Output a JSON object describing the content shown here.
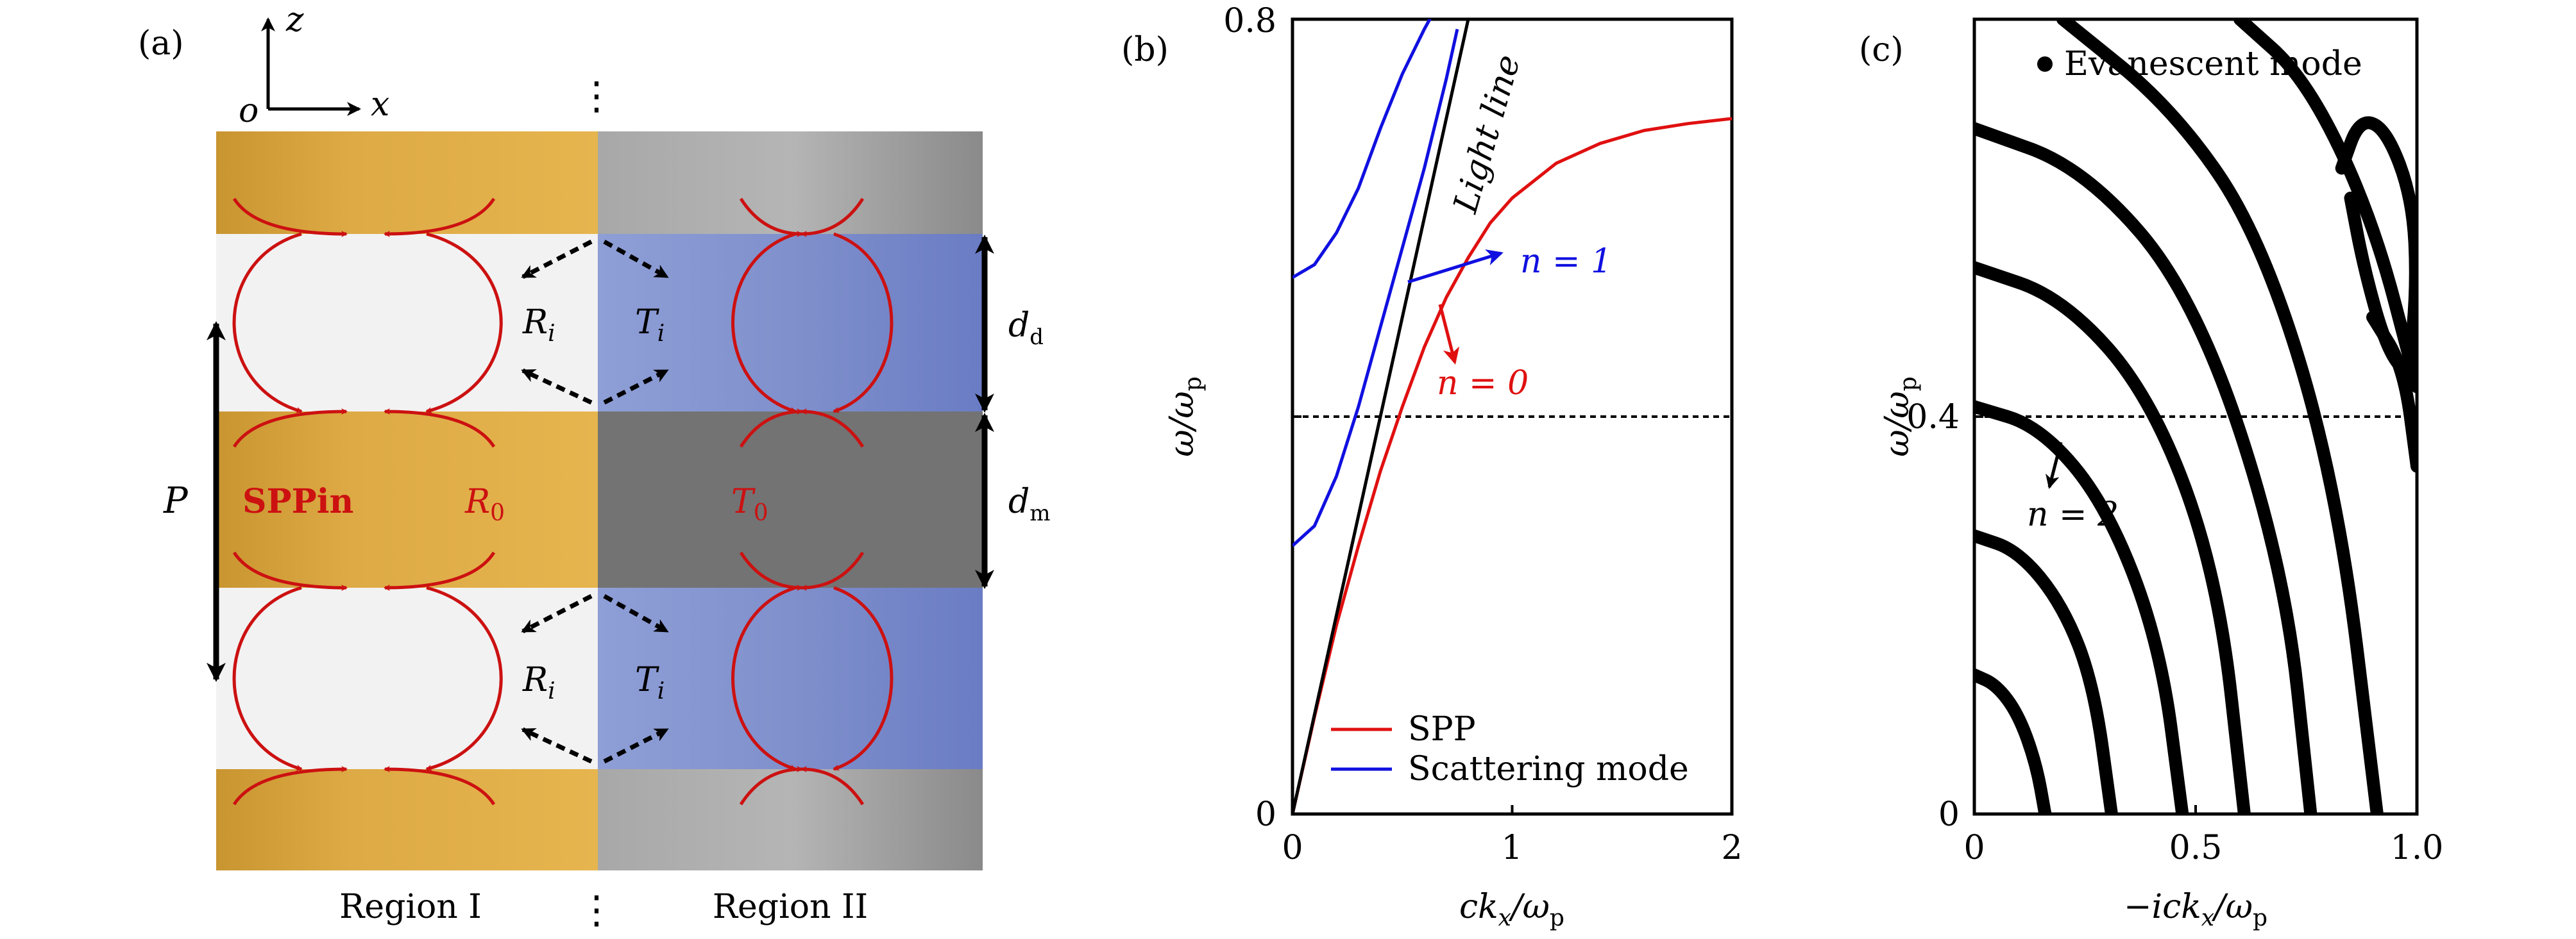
{
  "panel_a": {
    "label": "(a)",
    "axes": {
      "z": "z",
      "x": "x",
      "origin": "o"
    },
    "labels": {
      "spp_in": "SPPin",
      "r0": "R",
      "r0_sub": "0",
      "t0": "T",
      "t0_sub": "0",
      "ri": "R",
      "ri_sub": "i",
      "ti": "T",
      "ti_sub": "i",
      "period": "P",
      "dd": "d",
      "dd_sub": "d",
      "dm": "d",
      "dm_sub": "m",
      "region1": "Region I",
      "region2": "Region II",
      "colon": "⋮"
    },
    "colors": {
      "metal_left": "#D9A642",
      "metal_right": "#7A7A7A",
      "dielectric_left": "#F2F2F2",
      "dielectric_right": "#7E8FCC",
      "arrow": "#CC1111"
    }
  },
  "panel_b": {
    "label": "(b)",
    "xlabel": "ck",
    "xlabel_sub": "x",
    "xlabel_tail": "/ω",
    "xlabel_tail_sub": "p",
    "ylabel": "ω/ω",
    "ylabel_sub": "p",
    "xticks": [
      "0",
      "1",
      "2"
    ],
    "yticks": [
      "0",
      "0.8"
    ],
    "annotations": {
      "light_line": "Light line",
      "n1": "n = 1",
      "n0": "n = 0"
    },
    "legend": [
      {
        "name": "SPP",
        "color": "#E01010"
      },
      {
        "name": "Scattering mode",
        "color": "#1010E0"
      }
    ],
    "chart_data": {
      "type": "line",
      "xlim": [
        0,
        2
      ],
      "ylim": [
        0,
        0.8
      ],
      "hline": 0.4,
      "series": [
        {
          "name": "SPP",
          "color": "#E01010",
          "x": [
            0,
            0.1,
            0.2,
            0.3,
            0.4,
            0.5,
            0.6,
            0.7,
            0.8,
            0.9,
            1.0,
            1.2,
            1.4,
            1.6,
            1.8,
            2.0
          ],
          "y": [
            0,
            0.098,
            0.19,
            0.27,
            0.345,
            0.41,
            0.47,
            0.52,
            0.56,
            0.595,
            0.62,
            0.655,
            0.675,
            0.688,
            0.695,
            0.7
          ]
        },
        {
          "color": "#000000",
          "x": [
            0,
            0.8
          ],
          "y": [
            0,
            0.8
          ]
        },
        {
          "name": "Scattering mode",
          "color": "#1010E0",
          "x": [
            0,
            0.1,
            0.2,
            0.3,
            0.4,
            0.5,
            0.6,
            0.65
          ],
          "y": [
            0.54,
            0.553,
            0.585,
            0.63,
            0.69,
            0.745,
            0.79,
            0.81
          ]
        },
        {
          "name": "Scattering mode",
          "color": "#1010E0",
          "x": [
            0,
            0.1,
            0.2,
            0.3,
            0.4,
            0.5,
            0.6,
            0.7,
            0.75
          ],
          "y": [
            0.27,
            0.29,
            0.34,
            0.41,
            0.49,
            0.57,
            0.65,
            0.74,
            0.79
          ]
        }
      ]
    }
  },
  "panel_c": {
    "label": "(c)",
    "xlabel": "−ick",
    "xlabel_sub": "x",
    "xlabel_tail": "/ω",
    "xlabel_tail_sub": "p",
    "ylabel": "ω/ω",
    "ylabel_sub": "p",
    "xticks": [
      "0",
      "0.5",
      "1.0"
    ],
    "yticks": [
      "0",
      "0.4"
    ],
    "legend": [
      {
        "name": "Evanescent mode",
        "color": "#000000"
      }
    ],
    "annotations": {
      "n2": "n = 2"
    },
    "chart_data": {
      "type": "scatter",
      "xlim": [
        0,
        1.0
      ],
      "ylim": [
        0,
        0.8
      ],
      "hline": 0.4,
      "series": [
        {
          "name": "Evanescent mode",
          "arcs": [
            {
              "x": [
                0,
                0.05,
                0.1,
                0.14,
                0.16
              ],
              "y": [
                0.14,
                0.13,
                0.1,
                0.05,
                0
              ]
            },
            {
              "x": [
                0,
                0.1,
                0.2,
                0.27,
                0.31
              ],
              "y": [
                0.28,
                0.265,
                0.21,
                0.13,
                0
              ]
            },
            {
              "x": [
                0,
                0.15,
                0.3,
                0.42,
                0.47
              ],
              "y": [
                0.41,
                0.39,
                0.31,
                0.17,
                0
              ]
            },
            {
              "x": [
                0,
                0.2,
                0.4,
                0.55,
                0.61
              ],
              "y": [
                0.55,
                0.52,
                0.42,
                0.24,
                0
              ]
            },
            {
              "x": [
                0,
                0.25,
                0.5,
                0.7,
                0.76
              ],
              "y": [
                0.69,
                0.65,
                0.52,
                0.25,
                0
              ]
            },
            {
              "x": [
                0.2,
                0.45,
                0.65,
                0.82,
                0.91
              ],
              "y": [
                0.8,
                0.71,
                0.58,
                0.33,
                0
              ]
            },
            {
              "x": [
                0.6,
                0.75,
                0.9,
                1.0
              ],
              "y": [
                0.8,
                0.74,
                0.6,
                0.43
              ]
            },
            {
              "x": [
                0.83,
                0.87,
                0.93,
                0.99,
                1.0,
                0.98,
                0.93,
                0.88,
                0.85
              ],
              "y": [
                0.65,
                0.7,
                0.69,
                0.62,
                0.53,
                0.44,
                0.47,
                0.55,
                0.62
              ]
            },
            {
              "x": [
                0.9,
                0.97,
                1.0
              ],
              "y": [
                0.5,
                0.45,
                0.35
              ]
            }
          ]
        }
      ]
    }
  }
}
